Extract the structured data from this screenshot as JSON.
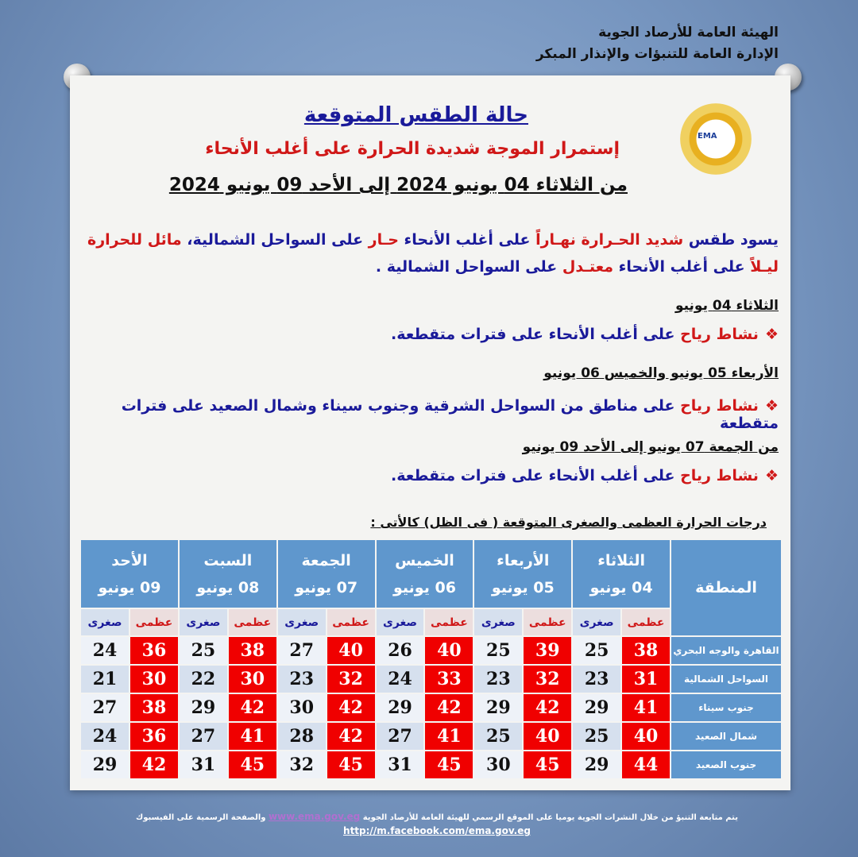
{
  "org": {
    "line1": "الهيئة العامة للأرصاد الجوية",
    "line2": "الإدارة العامة للتنبؤات والإنذار المبكر"
  },
  "logo_text": "EMA",
  "title": "حالة الطقس المتوقعة",
  "subtitle": "إستمرار الموجة شديدة الحرارة على أغلب الأنحاء",
  "dates": "من الثلاثاء 04 يونيو 2024 إلى الأحد 09 يونيو 2024",
  "paragraph": [
    {
      "t": "يسود طقس ",
      "c": "blue"
    },
    {
      "t": "شديد الحـرارة نهـاراً",
      "c": "red"
    },
    {
      "t": " على أغلب الأنحاء ",
      "c": "blue"
    },
    {
      "t": "حـار",
      "c": "red"
    },
    {
      "t": " على السواحل الشمالية، ",
      "c": "blue"
    },
    {
      "t": "مائل للحرارة ليـلاً",
      "c": "red"
    },
    {
      "t": " على أغلب الأنحاء ",
      "c": "blue"
    },
    {
      "t": "معتـدل",
      "c": "red"
    },
    {
      "t": " على السواحل الشمالية .",
      "c": "blue"
    }
  ],
  "periods": [
    {
      "heading": "الثلاثاء 04 يونيو",
      "red": "نشاط رياح",
      "text": " على أغلب الأنحاء على فترات متقطعة."
    },
    {
      "heading": "الأربعاء 05 يونيو والخميس 06 يونيو",
      "red": "نشاط رياح",
      "text": " على مناطق من السواحل الشرقية وجنوب سيناء وشمال الصعيد على فترات متقطعة"
    },
    {
      "heading": "من الجمعة 07 يونيو إلى الأحد 09 يونيو",
      "red": "نشاط رياح",
      "text": " على أغلب الأنحاء على فترات متقطعة."
    }
  ],
  "table_caption": "درجات الحرارة العظمى والصغرى المتوقعة ( فى الظل) كالأتى :",
  "table": {
    "region_header": "المنطقة",
    "max_label": "عظمى",
    "min_label": "صغرى",
    "days": [
      {
        "name": "الثلاثاء",
        "date": "04 يونيو"
      },
      {
        "name": "الأربعاء",
        "date": "05 يونيو"
      },
      {
        "name": "الخميس",
        "date": "06 يونيو"
      },
      {
        "name": "الجمعة",
        "date": "07 يونيو"
      },
      {
        "name": "السبت",
        "date": "08 يونيو"
      },
      {
        "name": "الأحد",
        "date": "09 يونيو"
      }
    ],
    "rows": [
      {
        "region": "القاهرة والوجه البحري",
        "values": [
          [
            38,
            25
          ],
          [
            39,
            25
          ],
          [
            40,
            26
          ],
          [
            40,
            27
          ],
          [
            38,
            25
          ],
          [
            36,
            24
          ]
        ]
      },
      {
        "region": "السواحل الشمالية",
        "values": [
          [
            31,
            23
          ],
          [
            32,
            23
          ],
          [
            33,
            24
          ],
          [
            32,
            23
          ],
          [
            30,
            22
          ],
          [
            30,
            21
          ]
        ]
      },
      {
        "region": "جنوب سيناء",
        "values": [
          [
            41,
            29
          ],
          [
            42,
            29
          ],
          [
            42,
            29
          ],
          [
            42,
            30
          ],
          [
            42,
            29
          ],
          [
            38,
            27
          ]
        ]
      },
      {
        "region": "شمال الصعيد",
        "values": [
          [
            40,
            25
          ],
          [
            40,
            25
          ],
          [
            41,
            27
          ],
          [
            42,
            28
          ],
          [
            41,
            27
          ],
          [
            36,
            24
          ]
        ]
      },
      {
        "region": "جنوب الصعيد",
        "values": [
          [
            44,
            29
          ],
          [
            45,
            30
          ],
          [
            45,
            31
          ],
          [
            45,
            32
          ],
          [
            45,
            31
          ],
          [
            42,
            29
          ]
        ]
      }
    ]
  },
  "footer": {
    "text1": "يتم متابعة التنبؤ من خلال النشرات الجوية يوميا على الموقع الرسمي للهيئة العامة للأرصاد الجوية ",
    "link": "www.ema.gov.eg",
    "text2": "  والصفحة الرسمية على الفيسبوك",
    "facebook": "http://m.facebook.com/ema.gov.eg"
  },
  "colors": {
    "blue": "#1a1a9a",
    "red": "#d01818",
    "header": "#5f97cd",
    "cell_max": "#f00000"
  }
}
